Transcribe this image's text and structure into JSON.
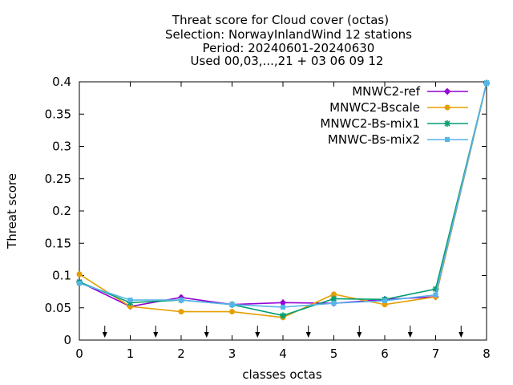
{
  "chart_data": {
    "type": "line",
    "title_lines": [
      "Threat score  for Cloud cover (octas)",
      "Selection: NorwayInlandWind      12 stations",
      "Period: 20240601-20240630",
      "Used 00,03,...,21 + 03 06 09 12"
    ],
    "xlabel": "classes octas",
    "ylabel": "Threat score",
    "xlim": [
      0,
      8
    ],
    "ylim": [
      0,
      0.4
    ],
    "x_ticks": [
      "0",
      "1",
      "2",
      "3",
      "4",
      "5",
      "6",
      "7",
      "8"
    ],
    "y_ticks": [
      "0",
      "0.05",
      "0.1",
      "0.15",
      "0.2",
      "0.25",
      "0.3",
      "0.35",
      "0.4"
    ],
    "x_tick_values": [
      0,
      1,
      2,
      3,
      4,
      5,
      6,
      7,
      8
    ],
    "y_tick_values": [
      0,
      0.05,
      0.1,
      0.15,
      0.2,
      0.25,
      0.3,
      0.35,
      0.4
    ],
    "arrow_markers_x": [
      0.5,
      1.5,
      2.5,
      3.5,
      4.5,
      5.5,
      6.5,
      7.5
    ],
    "legend_position": "top-right",
    "grid": false,
    "x": [
      0,
      1,
      2,
      3,
      4,
      5,
      6,
      7,
      8
    ],
    "series": [
      {
        "name": "MNWC2-ref",
        "color": "#9400d3",
        "marker": "plus-circle",
        "values": [
          0.09,
          0.052,
          0.066,
          0.055,
          0.058,
          0.057,
          0.063,
          0.067,
          0.398
        ]
      },
      {
        "name": "MNWC2-Bscale",
        "color": "#e69f00",
        "marker": "filled-circle",
        "values": [
          0.102,
          0.052,
          0.044,
          0.044,
          0.035,
          0.071,
          0.055,
          0.067,
          0.398
        ]
      },
      {
        "name": "MNWC2-Bs-mix1",
        "color": "#009e73",
        "marker": "star",
        "values": [
          0.09,
          0.058,
          0.062,
          0.055,
          0.038,
          0.064,
          0.063,
          0.079,
          0.398
        ]
      },
      {
        "name": "MNWC-Bs-mix2",
        "color": "#56b4e9",
        "marker": "box",
        "values": [
          0.088,
          0.062,
          0.062,
          0.055,
          0.051,
          0.057,
          0.061,
          0.07,
          0.398
        ]
      }
    ]
  }
}
